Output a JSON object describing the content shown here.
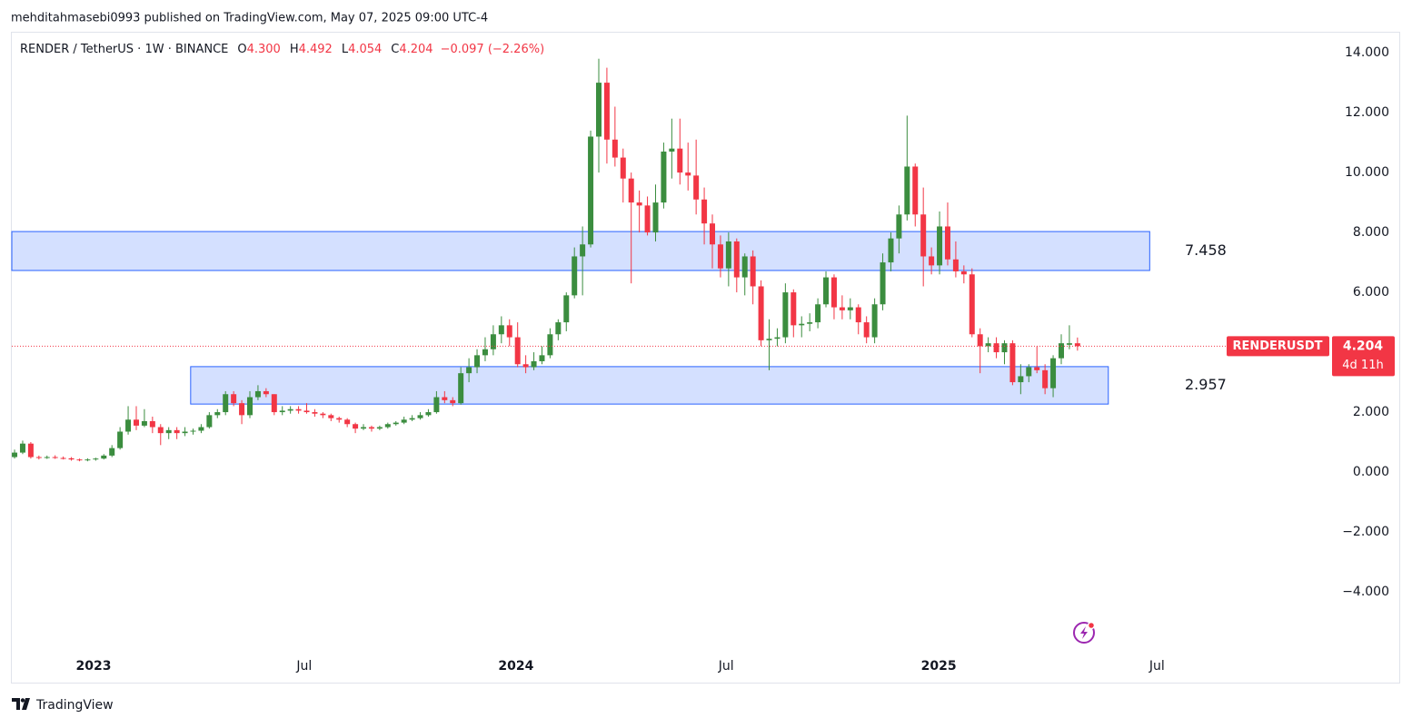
{
  "header": "mehditahmasebi0993 published on TradingView.com, May 07, 2025 09:00 UTC-4",
  "footer": "TradingView",
  "chart_data": {
    "type": "candlestick",
    "legend": {
      "symbol": "RENDER / TetherUS · 1W · BINANCE",
      "ohlc": [
        {
          "key": "O",
          "label": "4.300"
        },
        {
          "key": "H",
          "label": "4.492"
        },
        {
          "key": "L",
          "label": "4.054"
        },
        {
          "key": "C",
          "label": "4.204"
        }
      ],
      "change": "−0.097 (−2.26%)"
    },
    "price_tag": {
      "ticker": "RENDERUSDT",
      "price": "4.204",
      "countdown": "4d 11h"
    },
    "up_color": "#3b8d3f",
    "down_color": "#f23645",
    "candles": [
      [
        0.5,
        0.75,
        0.45,
        0.65
      ],
      [
        0.65,
        1.05,
        0.6,
        0.95
      ],
      [
        0.95,
        1.0,
        0.45,
        0.5
      ],
      [
        0.5,
        0.55,
        0.42,
        0.48
      ],
      [
        0.48,
        0.55,
        0.44,
        0.5
      ],
      [
        0.5,
        0.56,
        0.44,
        0.47
      ],
      [
        0.47,
        0.52,
        0.42,
        0.46
      ],
      [
        0.46,
        0.5,
        0.38,
        0.42
      ],
      [
        0.42,
        0.45,
        0.36,
        0.4
      ],
      [
        0.4,
        0.46,
        0.36,
        0.42
      ],
      [
        0.42,
        0.48,
        0.38,
        0.45
      ],
      [
        0.45,
        0.6,
        0.42,
        0.55
      ],
      [
        0.55,
        0.9,
        0.5,
        0.8
      ],
      [
        0.8,
        1.5,
        0.75,
        1.35
      ],
      [
        1.35,
        2.2,
        1.25,
        1.75
      ],
      [
        1.75,
        2.2,
        1.4,
        1.55
      ],
      [
        1.55,
        2.1,
        1.5,
        1.7
      ],
      [
        1.7,
        1.85,
        1.3,
        1.5
      ],
      [
        1.5,
        1.6,
        0.9,
        1.3
      ],
      [
        1.3,
        1.5,
        1.1,
        1.4
      ],
      [
        1.4,
        1.5,
        1.1,
        1.3
      ],
      [
        1.3,
        1.5,
        1.2,
        1.35
      ],
      [
        1.35,
        1.45,
        1.25,
        1.38
      ],
      [
        1.38,
        1.6,
        1.3,
        1.5
      ],
      [
        1.5,
        2.0,
        1.45,
        1.9
      ],
      [
        1.9,
        2.1,
        1.8,
        2.0
      ],
      [
        2.0,
        2.7,
        1.9,
        2.6
      ],
      [
        2.6,
        2.7,
        2.2,
        2.3
      ],
      [
        2.3,
        2.4,
        1.6,
        1.9
      ],
      [
        1.9,
        2.7,
        1.8,
        2.5
      ],
      [
        2.5,
        2.9,
        2.4,
        2.7
      ],
      [
        2.7,
        2.8,
        2.5,
        2.6
      ],
      [
        2.6,
        2.6,
        1.9,
        2.0
      ],
      [
        2.0,
        2.2,
        1.9,
        2.05
      ],
      [
        2.05,
        2.2,
        1.95,
        2.1
      ],
      [
        2.1,
        2.2,
        1.95,
        2.05
      ],
      [
        2.05,
        2.3,
        1.95,
        2.0
      ],
      [
        2.0,
        2.1,
        1.85,
        1.95
      ],
      [
        1.95,
        2.0,
        1.8,
        1.9
      ],
      [
        1.9,
        1.95,
        1.7,
        1.8
      ],
      [
        1.8,
        1.85,
        1.65,
        1.75
      ],
      [
        1.75,
        1.8,
        1.5,
        1.6
      ],
      [
        1.6,
        1.65,
        1.3,
        1.45
      ],
      [
        1.45,
        1.6,
        1.4,
        1.5
      ],
      [
        1.5,
        1.55,
        1.35,
        1.45
      ],
      [
        1.45,
        1.55,
        1.4,
        1.5
      ],
      [
        1.5,
        1.65,
        1.45,
        1.6
      ],
      [
        1.6,
        1.7,
        1.55,
        1.65
      ],
      [
        1.65,
        1.85,
        1.6,
        1.75
      ],
      [
        1.75,
        1.9,
        1.7,
        1.8
      ],
      [
        1.8,
        2.0,
        1.75,
        1.9
      ],
      [
        1.9,
        2.1,
        1.85,
        2.0
      ],
      [
        2.0,
        2.7,
        1.95,
        2.5
      ],
      [
        2.5,
        2.7,
        2.3,
        2.4
      ],
      [
        2.4,
        2.5,
        2.2,
        2.3
      ],
      [
        2.3,
        3.5,
        2.25,
        3.3
      ],
      [
        3.3,
        3.8,
        3.0,
        3.5
      ],
      [
        3.5,
        4.1,
        3.3,
        3.9
      ],
      [
        3.9,
        4.5,
        3.7,
        4.1
      ],
      [
        4.1,
        4.9,
        3.9,
        4.6
      ],
      [
        4.6,
        5.2,
        4.3,
        4.9
      ],
      [
        4.9,
        5.1,
        4.2,
        4.5
      ],
      [
        4.5,
        5.0,
        3.5,
        3.6
      ],
      [
        3.6,
        3.9,
        3.3,
        3.5
      ],
      [
        3.5,
        4.0,
        3.4,
        3.7
      ],
      [
        3.7,
        4.2,
        3.6,
        3.9
      ],
      [
        3.9,
        4.8,
        3.8,
        4.6
      ],
      [
        4.6,
        5.1,
        4.4,
        5.0
      ],
      [
        5.0,
        6.0,
        4.7,
        5.9
      ],
      [
        5.9,
        7.5,
        5.8,
        7.2
      ],
      [
        7.2,
        8.2,
        5.9,
        7.6
      ],
      [
        7.6,
        11.4,
        7.5,
        11.2
      ],
      [
        11.2,
        13.8,
        10.0,
        13.0
      ],
      [
        13.0,
        13.5,
        10.3,
        11.1
      ],
      [
        11.1,
        12.2,
        10.2,
        10.5
      ],
      [
        10.5,
        10.8,
        9.0,
        9.8
      ],
      [
        9.8,
        10.0,
        6.3,
        9.0
      ],
      [
        9.0,
        9.4,
        8.0,
        8.9
      ],
      [
        8.9,
        9.2,
        7.9,
        8.0
      ],
      [
        8.0,
        9.6,
        7.7,
        9.0
      ],
      [
        9.0,
        11.0,
        8.8,
        10.7
      ],
      [
        10.7,
        11.8,
        9.8,
        10.8
      ],
      [
        10.8,
        11.8,
        9.6,
        10.0
      ],
      [
        10.0,
        11.0,
        9.4,
        9.9
      ],
      [
        9.9,
        11.1,
        8.6,
        9.1
      ],
      [
        9.1,
        9.5,
        7.6,
        8.3
      ],
      [
        8.3,
        8.6,
        6.8,
        7.6
      ],
      [
        7.6,
        7.9,
        6.5,
        6.8
      ],
      [
        6.8,
        8.0,
        6.2,
        7.7
      ],
      [
        7.7,
        7.8,
        6.0,
        6.5
      ],
      [
        6.5,
        7.3,
        5.9,
        7.2
      ],
      [
        7.2,
        7.4,
        5.6,
        6.2
      ],
      [
        6.2,
        6.4,
        4.2,
        4.4
      ],
      [
        4.4,
        5.1,
        3.4,
        4.45
      ],
      [
        4.45,
        4.8,
        4.2,
        4.5
      ],
      [
        4.5,
        6.3,
        4.3,
        6.0
      ],
      [
        6.0,
        6.1,
        4.5,
        4.9
      ],
      [
        4.9,
        5.2,
        4.5,
        4.95
      ],
      [
        4.95,
        5.3,
        4.7,
        5.0
      ],
      [
        5.0,
        5.8,
        4.8,
        5.6
      ],
      [
        5.6,
        6.7,
        5.5,
        6.5
      ],
      [
        6.5,
        6.6,
        5.1,
        5.5
      ],
      [
        5.5,
        5.9,
        5.1,
        5.4
      ],
      [
        5.4,
        5.8,
        5.1,
        5.5
      ],
      [
        5.5,
        5.6,
        4.6,
        5.0
      ],
      [
        5.0,
        5.2,
        4.3,
        4.5
      ],
      [
        4.5,
        5.8,
        4.3,
        5.6
      ],
      [
        5.6,
        7.3,
        5.4,
        7.0
      ],
      [
        7.0,
        8.0,
        6.7,
        7.8
      ],
      [
        7.8,
        8.9,
        7.3,
        8.6
      ],
      [
        8.6,
        11.9,
        8.4,
        10.2
      ],
      [
        10.2,
        10.3,
        8.2,
        8.6
      ],
      [
        8.6,
        9.5,
        6.2,
        7.2
      ],
      [
        7.2,
        7.5,
        6.6,
        6.9
      ],
      [
        6.9,
        8.7,
        6.6,
        8.2
      ],
      [
        8.2,
        9.0,
        6.9,
        7.1
      ],
      [
        7.1,
        7.7,
        6.5,
        6.7
      ],
      [
        6.7,
        6.9,
        6.3,
        6.6
      ],
      [
        6.6,
        6.8,
        4.5,
        4.6
      ],
      [
        4.6,
        4.8,
        3.3,
        4.2
      ],
      [
        4.2,
        4.5,
        4.0,
        4.3
      ],
      [
        4.3,
        4.5,
        3.8,
        4.0
      ],
      [
        4.0,
        4.4,
        3.6,
        4.3
      ],
      [
        4.3,
        4.4,
        2.9,
        3.0
      ],
      [
        3.0,
        3.6,
        2.6,
        3.2
      ],
      [
        3.2,
        3.6,
        3.0,
        3.5
      ],
      [
        3.5,
        4.2,
        3.3,
        3.4
      ],
      [
        3.4,
        3.6,
        2.6,
        2.8
      ],
      [
        2.8,
        3.9,
        2.5,
        3.8
      ],
      [
        3.8,
        4.6,
        3.6,
        4.3
      ],
      [
        4.25,
        4.9,
        4.1,
        4.3
      ],
      [
        4.3,
        4.492,
        4.054,
        4.204
      ]
    ],
    "zones": [
      {
        "top": 8.03,
        "bottom": 6.73,
        "start": -0.34,
        "end": 139.9,
        "label": 7.458
      },
      {
        "top": 3.52,
        "bottom": 2.27,
        "start": 21.7,
        "end": 134.8,
        "label": 2.957
      }
    ],
    "xlim": [
      -0.34,
      162.26
    ],
    "xticks": [
      {
        "value": 9.74,
        "label": "2023"
      },
      {
        "value": 35.7,
        "label": "Jul"
      },
      {
        "value": 61.8,
        "label": "2024"
      },
      {
        "value": 87.7,
        "label": "Jul"
      },
      {
        "value": 113.9,
        "label": "2025"
      },
      {
        "value": 140.8,
        "label": "Jul"
      }
    ],
    "ylim": [
      -7.03,
      14.7
    ],
    "yticks": [
      {
        "value": 14,
        "label": "14.000"
      },
      {
        "value": 12,
        "label": "12.000"
      },
      {
        "value": 10,
        "label": "10.000"
      },
      {
        "value": 8,
        "label": "8.000"
      },
      {
        "value": 6,
        "label": "6.000"
      },
      {
        "value": 4,
        "label": "4.000"
      },
      {
        "value": 2,
        "label": "2.000"
      },
      {
        "value": 0,
        "label": "0.000"
      },
      {
        "value": -2,
        "label": "−2.000"
      },
      {
        "value": -4,
        "label": "−4.000"
      }
    ]
  }
}
